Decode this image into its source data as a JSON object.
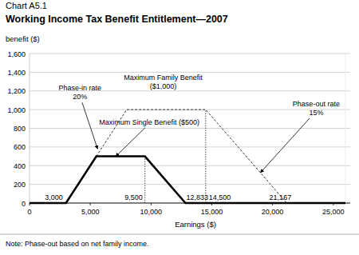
{
  "chart_data": {
    "type": "line",
    "subtitle": "Chart A5.1",
    "title": "Working Income Tax Benefit Entitlement—2007",
    "y_label": "benefit ($)",
    "x_label": "Earnings ($)",
    "note": "Note: Phase-out based on net family income.",
    "xlim": [
      0,
      26000
    ],
    "ylim": [
      0,
      1600
    ],
    "xticks": [
      0,
      {
        "value": 5000,
        "label": "5,000"
      },
      {
        "value": 10000,
        "label": "10,000"
      },
      {
        "value": 15000,
        "label": "15,000"
      },
      {
        "value": 20000,
        "label": "20,000"
      },
      {
        "value": 25000,
        "label": "25,000"
      }
    ],
    "yticks": [
      0,
      200,
      400,
      600,
      800,
      {
        "value": 1000,
        "label": "1,000"
      },
      {
        "value": 1200,
        "label": "1,200"
      },
      {
        "value": 1400,
        "label": "1,400"
      },
      {
        "value": 1600,
        "label": "1,600"
      }
    ],
    "grid": true,
    "series": [
      {
        "color": "#000000",
        "line_style": "solid",
        "x": [
          0,
          3000,
          5500,
          9500,
          12833,
          26000
        ],
        "values": [
          0,
          0,
          500,
          500,
          0,
          0
        ]
      },
      {
        "color": "#000000",
        "line_style": "dashed",
        "x": [
          5500,
          8000,
          14500,
          21167
        ],
        "values": [
          500,
          1000,
          1000,
          0
        ]
      }
    ],
    "x_markers": [
      {
        "value": 3000,
        "label": "3,000"
      },
      {
        "value": 9500,
        "label": "9,500",
        "guide_y": 500
      },
      {
        "value": 12833,
        "label": "12,833"
      },
      {
        "value": 14500,
        "label": "14,500",
        "guide_y": 1000
      },
      {
        "value": 21167,
        "label": "21,167"
      }
    ],
    "annotations": [
      {
        "text": [
          "Phase-in rate",
          "20%"
        ],
        "x": 5600,
        "y": 580
      },
      {
        "text": [
          "Maximum Family Benefit",
          "($1,000)"
        ],
        "x": 11000,
        "y": 1000
      },
      {
        "text": [
          "Maximum Single Benefit ($500)"
        ],
        "x": 7100,
        "y": 500
      },
      {
        "text": [
          "Phase-out rate",
          "15%"
        ],
        "x": 19000,
        "y": 325
      }
    ]
  }
}
